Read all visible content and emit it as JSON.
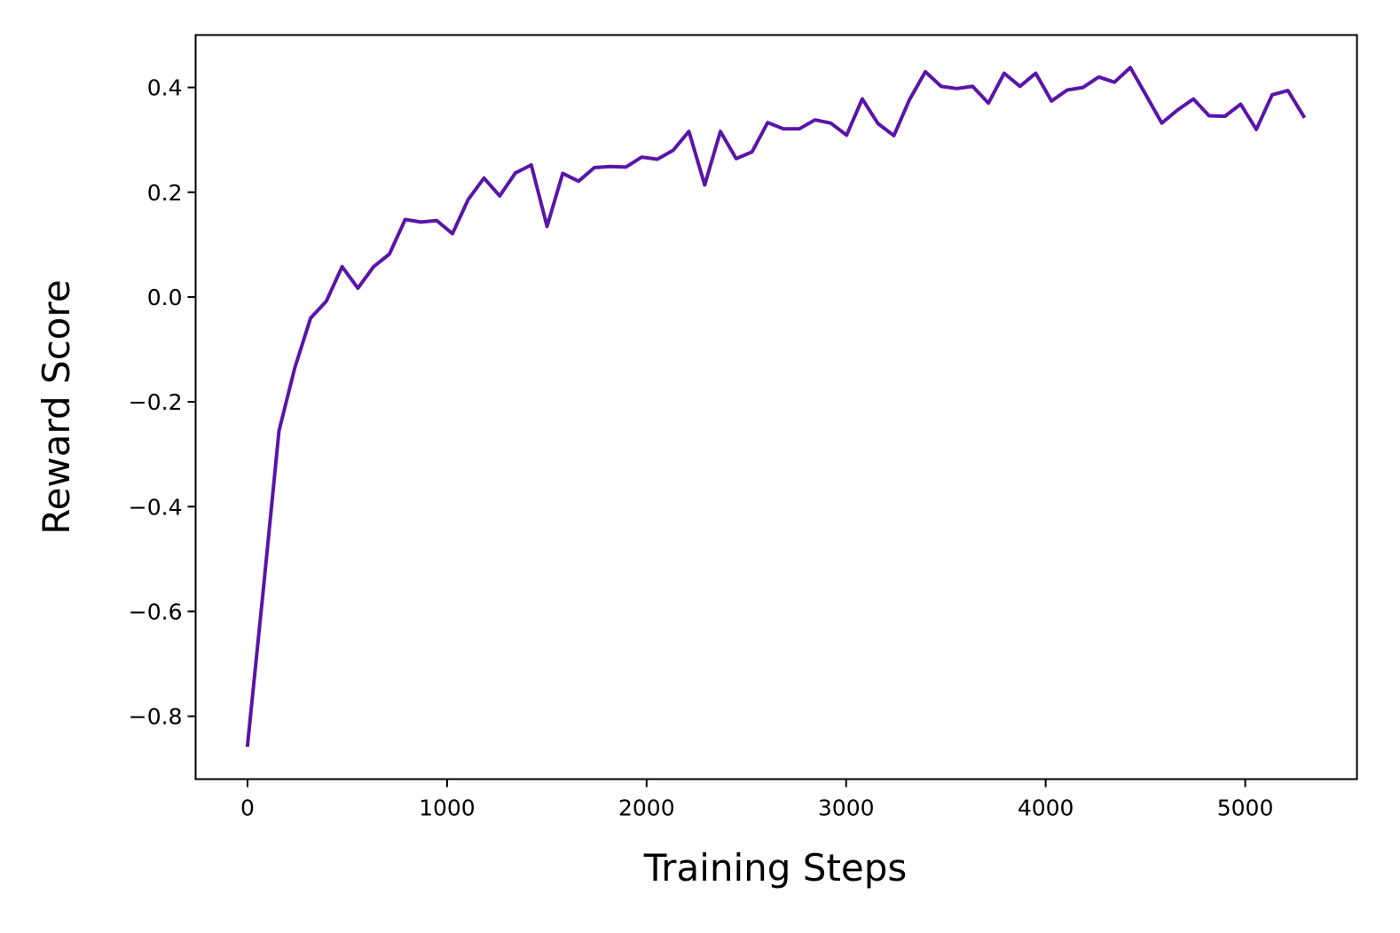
{
  "chart_data": {
    "type": "line",
    "title": "",
    "xlabel": "Training Steps",
    "ylabel": "Reward Score",
    "xlim": [
      -260,
      5560
    ],
    "ylim": [
      -0.92,
      0.5
    ],
    "grid": false,
    "legend": "none",
    "x_ticks": [
      {
        "value": 0,
        "label": "0"
      },
      {
        "value": 1000,
        "label": "1000"
      },
      {
        "value": 2000,
        "label": "2000"
      },
      {
        "value": 3000,
        "label": "3000"
      },
      {
        "value": 4000,
        "label": "4000"
      },
      {
        "value": 5000,
        "label": "5000"
      }
    ],
    "y_ticks": [
      {
        "value": -0.8,
        "label": "−0.8"
      },
      {
        "value": -0.6,
        "label": "−0.6"
      },
      {
        "value": -0.4,
        "label": "−0.4"
      },
      {
        "value": -0.2,
        "label": "−0.2"
      },
      {
        "value": 0.0,
        "label": "0.0"
      },
      {
        "value": 0.2,
        "label": "0.2"
      },
      {
        "value": 0.4,
        "label": "0.4"
      }
    ],
    "series": [
      {
        "color": "#5b14a8",
        "x": [
          0,
          79,
          158,
          237,
          316,
          395,
          474,
          553,
          632,
          711,
          790,
          869,
          948,
          1027,
          1106,
          1185,
          1264,
          1343,
          1422,
          1501,
          1580,
          1659,
          1738,
          1817,
          1896,
          1975,
          2054,
          2133,
          2212,
          2291,
          2370,
          2449,
          2528,
          2607,
          2686,
          2765,
          2844,
          2923,
          3002,
          3081,
          3160,
          3239,
          3318,
          3397,
          3476,
          3555,
          3634,
          3713,
          3792,
          3871,
          3950,
          4029,
          4108,
          4187,
          4266,
          4345,
          4424,
          4503,
          4582,
          4661,
          4740,
          4819,
          4898,
          4977,
          5056,
          5135,
          5214,
          5293
        ],
        "y": [
          -0.855,
          -0.56,
          -0.255,
          -0.135,
          -0.04,
          -0.008,
          0.058,
          0.017,
          0.058,
          0.082,
          0.148,
          0.143,
          0.146,
          0.121,
          0.186,
          0.227,
          0.193,
          0.237,
          0.252,
          0.135,
          0.236,
          0.221,
          0.247,
          0.249,
          0.248,
          0.267,
          0.263,
          0.28,
          0.316,
          0.214,
          0.316,
          0.264,
          0.277,
          0.333,
          0.321,
          0.321,
          0.338,
          0.332,
          0.309,
          0.378,
          0.331,
          0.308,
          0.377,
          0.43,
          0.402,
          0.398,
          0.402,
          0.37,
          0.427,
          0.402,
          0.427,
          0.374,
          0.395,
          0.4,
          0.42,
          0.41,
          0.438,
          0.385,
          0.332,
          0.357,
          0.378,
          0.346,
          0.345,
          0.368,
          0.32,
          0.386,
          0.394,
          0.345
        ]
      }
    ]
  }
}
